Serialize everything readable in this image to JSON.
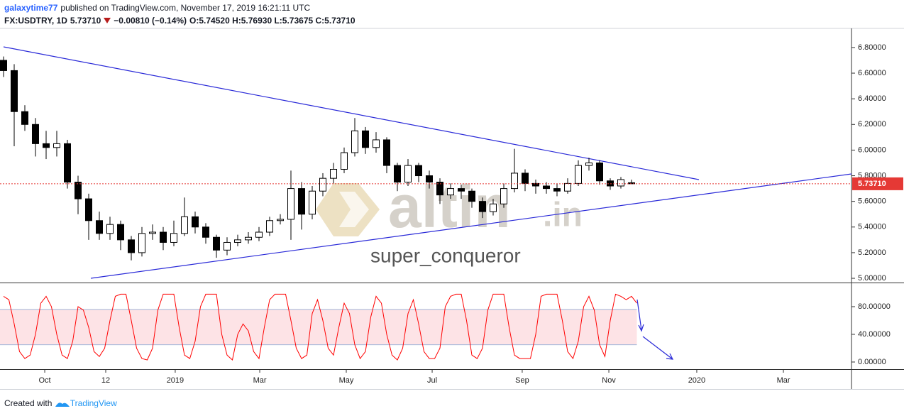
{
  "header": {
    "author": "galaxytime77",
    "published": "published on TradingView.com, November 17, 2019 16:21:11 UTC",
    "symbol": "FX:USDTRY, 1D",
    "price": "5.73710",
    "change": "−0.00810 (−0.14%)",
    "ohlc": "O:5.74520 H:5.76930 L:5.73675 C:5.73710"
  },
  "watermark": {
    "brand": "altin",
    "domain": ".in",
    "author": "super_conqueror"
  },
  "footer": {
    "created": "Created with",
    "brand": "TradingView"
  },
  "chart_data": [
    {
      "type": "candlestick",
      "up_color": "#ffffff",
      "down_color": "#000000",
      "edge_color": "#000000",
      "open": [
        6.7,
        6.62,
        6.3,
        6.2,
        6.05,
        6.02,
        6.05,
        5.75,
        5.62,
        5.45,
        5.35,
        5.42,
        5.3,
        5.2,
        5.35,
        5.36,
        5.28,
        5.35,
        5.48,
        5.4,
        5.32,
        5.22,
        5.28,
        5.3,
        5.32,
        5.36,
        5.45,
        5.46,
        5.7,
        5.5,
        5.68,
        5.78,
        5.85,
        5.98,
        6.15,
        6.02,
        6.08,
        5.88,
        5.75,
        5.88,
        5.8,
        5.75,
        5.65,
        5.7,
        5.68,
        5.6,
        5.52,
        5.58,
        5.7,
        5.82,
        5.74,
        5.72,
        5.7,
        5.68,
        5.74,
        5.88,
        5.9,
        5.76,
        5.72,
        5.7452
      ],
      "high": [
        6.73,
        6.67,
        6.35,
        6.25,
        6.15,
        6.15,
        6.08,
        5.8,
        5.66,
        5.52,
        5.48,
        5.45,
        5.33,
        5.4,
        5.42,
        5.4,
        5.45,
        5.63,
        5.52,
        5.43,
        5.34,
        5.32,
        5.34,
        5.36,
        5.4,
        5.48,
        5.5,
        5.84,
        5.75,
        5.72,
        5.82,
        5.9,
        6.02,
        6.25,
        6.18,
        6.14,
        6.1,
        5.9,
        5.93,
        5.9,
        5.84,
        5.78,
        5.74,
        5.73,
        5.7,
        5.63,
        5.62,
        5.74,
        6.01,
        5.85,
        5.77,
        5.75,
        5.74,
        5.78,
        5.92,
        5.94,
        5.92,
        5.78,
        5.79,
        5.7693
      ],
      "low": [
        6.57,
        6.03,
        6.15,
        5.95,
        5.93,
        5.95,
        5.7,
        5.5,
        5.3,
        5.3,
        5.3,
        5.22,
        5.14,
        5.17,
        5.3,
        5.22,
        5.25,
        5.33,
        5.35,
        5.27,
        5.16,
        5.18,
        5.25,
        5.27,
        5.29,
        5.33,
        5.42,
        5.3,
        5.38,
        5.46,
        5.64,
        5.74,
        5.82,
        5.95,
        5.97,
        5.98,
        5.82,
        5.68,
        5.72,
        5.75,
        5.7,
        5.58,
        5.62,
        5.62,
        5.55,
        5.47,
        5.49,
        5.55,
        5.67,
        5.68,
        5.66,
        5.66,
        5.64,
        5.66,
        5.72,
        5.84,
        5.73,
        5.69,
        5.7,
        5.73675
      ],
      "close": [
        6.62,
        6.3,
        6.2,
        6.05,
        6.02,
        6.05,
        5.75,
        5.62,
        5.45,
        5.35,
        5.42,
        5.3,
        5.2,
        5.35,
        5.36,
        5.28,
        5.35,
        5.48,
        5.4,
        5.32,
        5.22,
        5.28,
        5.3,
        5.32,
        5.36,
        5.45,
        5.46,
        5.7,
        5.5,
        5.68,
        5.78,
        5.85,
        5.98,
        6.15,
        6.02,
        6.08,
        5.88,
        5.75,
        5.88,
        5.8,
        5.75,
        5.65,
        5.7,
        5.68,
        5.6,
        5.52,
        5.58,
        5.7,
        5.82,
        5.74,
        5.72,
        5.7,
        5.68,
        5.74,
        5.88,
        5.9,
        5.76,
        5.72,
        5.77,
        5.7371
      ],
      "xlim": [
        -0.333,
        79.667
      ],
      "xticks": [
        {
          "value": 3.87,
          "label": "Oct"
        },
        {
          "value": 9.6,
          "label": "12"
        },
        {
          "value": 16.13,
          "label": "2019"
        },
        {
          "value": 24.07,
          "label": "Mar"
        },
        {
          "value": 32.2,
          "label": "May"
        },
        {
          "value": 40.27,
          "label": "Jul"
        },
        {
          "value": 48.73,
          "label": "Sep"
        },
        {
          "value": 56.87,
          "label": "Nov"
        },
        {
          "value": 65.13,
          "label": "2020"
        },
        {
          "value": 73.27,
          "label": "Mar"
        }
      ],
      "ylim": [
        4.967,
        6.949
      ],
      "yticks": [
        {
          "value": 5.0,
          "label": "5.00000"
        },
        {
          "value": 5.2,
          "label": "5.20000"
        },
        {
          "value": 5.4,
          "label": "5.40000"
        },
        {
          "value": 5.6,
          "label": "5.60000"
        },
        {
          "value": 5.8,
          "label": "5.80000"
        },
        {
          "value": 6.0,
          "label": "6.00000"
        },
        {
          "value": 6.2,
          "label": "6.20000"
        },
        {
          "value": 6.4,
          "label": "6.40000"
        },
        {
          "value": 6.6,
          "label": "6.60000"
        },
        {
          "value": 6.8,
          "label": "6.80000"
        }
      ],
      "last_price": {
        "value": 5.7371,
        "label": "5.73710"
      },
      "last_price_color": "#e53935"
    },
    {
      "type": "line",
      "color": "#ff0000",
      "band": [
        25,
        76
      ],
      "band_color": "#fde3e6",
      "values": [
        95,
        90,
        55,
        15,
        5,
        10,
        40,
        85,
        95,
        80,
        40,
        10,
        5,
        30,
        80,
        75,
        50,
        15,
        8,
        20,
        60,
        95,
        98,
        98,
        60,
        20,
        5,
        3,
        20,
        75,
        98,
        98,
        98,
        50,
        10,
        5,
        30,
        80,
        98,
        98,
        98,
        40,
        10,
        3,
        40,
        55,
        45,
        15,
        5,
        50,
        90,
        98,
        98,
        98,
        60,
        20,
        5,
        10,
        70,
        90,
        60,
        20,
        10,
        50,
        85,
        70,
        25,
        5,
        15,
        65,
        95,
        85,
        40,
        10,
        3,
        20,
        70,
        90,
        55,
        15,
        5,
        5,
        20,
        80,
        95,
        98,
        98,
        60,
        10,
        5,
        20,
        75,
        98,
        98,
        98,
        50,
        10,
        5,
        5,
        5,
        40,
        95,
        98,
        98,
        98,
        60,
        15,
        5,
        30,
        80,
        95,
        75,
        25,
        8,
        60,
        98,
        95,
        90,
        95,
        85
      ],
      "xlim": [
        -0.667,
        159.333
      ],
      "ylim": [
        -10.3,
        112.8
      ],
      "yticks": [
        {
          "value": 0,
          "label": "0.00000"
        },
        {
          "value": 40,
          "label": "40.00000"
        },
        {
          "value": 80,
          "label": "80.00000"
        }
      ]
    }
  ]
}
